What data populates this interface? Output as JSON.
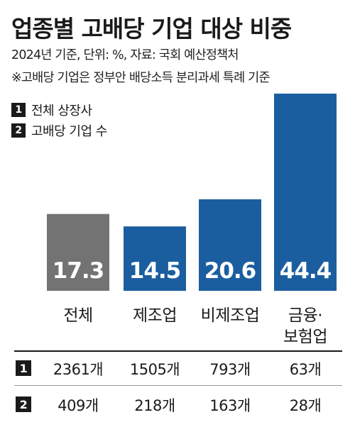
{
  "title": "업종별 고배당 기업 대상 비중",
  "subtitle": "2024년 기준, 단위: %, 자료: 국회 예산정책처",
  "note": "※고배당 기업은 정부안 배당소득 분리과세 특례 기준",
  "legend": [
    {
      "marker": "1",
      "label": "전체 상장사"
    },
    {
      "marker": "2",
      "label": "고배당 기업 수"
    }
  ],
  "colors": {
    "gray": "#737373",
    "blue": "#1b5ea0",
    "text": "#1a1a1a"
  },
  "chart_data": {
    "type": "bar",
    "categories": [
      "전체",
      "제조업",
      "비제조업",
      "금융·보험업"
    ],
    "category_lines": [
      [
        "전체"
      ],
      [
        "제조업"
      ],
      [
        "비제조업"
      ],
      [
        "금융·",
        "보험업"
      ]
    ],
    "values": [
      17.3,
      14.5,
      20.6,
      44.4
    ],
    "value_labels": [
      "17.3",
      "14.5",
      "20.6",
      "44.4"
    ],
    "bar_colors": [
      "#737373",
      "#1b5ea0",
      "#1b5ea0",
      "#1b5ea0"
    ],
    "unit": "%",
    "ylim": [
      0,
      44.4
    ],
    "grid": false,
    "legend_position": "top-left"
  },
  "table": {
    "rows": [
      {
        "marker": "1",
        "cells": [
          "2361개",
          "1505개",
          "793개",
          "63개"
        ]
      },
      {
        "marker": "2",
        "cells": [
          "409개",
          "218개",
          "163개",
          "28개"
        ]
      }
    ]
  }
}
